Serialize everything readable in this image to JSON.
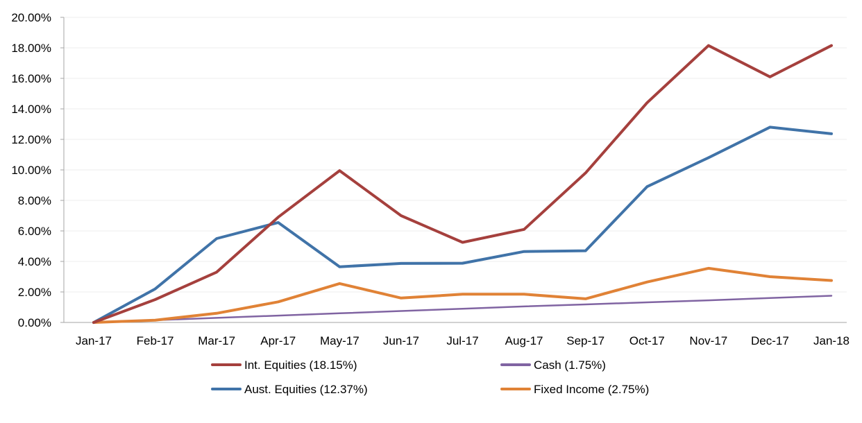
{
  "chart_data": {
    "type": "line",
    "categories": [
      "Jan-17",
      "Feb-17",
      "Mar-17",
      "Apr-17",
      "May-17",
      "Jun-17",
      "Jul-17",
      "Aug-17",
      "Sep-17",
      "Oct-17",
      "Nov-17",
      "Dec-17",
      "Jan-18"
    ],
    "ylim": [
      0,
      20
    ],
    "yticks": [
      "0.00%",
      "2.00%",
      "4.00%",
      "6.00%",
      "8.00%",
      "10.00%",
      "12.00%",
      "14.00%",
      "16.00%",
      "18.00%",
      "20.00%"
    ],
    "grid": true,
    "legend_position": "bottom",
    "series": [
      {
        "name": "Int. Equities (18.15%)",
        "color": "#a5403d",
        "values": [
          0.0,
          1.5,
          3.3,
          6.9,
          9.95,
          7.0,
          5.25,
          6.1,
          9.8,
          14.4,
          18.15,
          16.1,
          18.15
        ]
      },
      {
        "name": "Cash (1.75%)",
        "color": "#8064a2",
        "values": [
          0.0,
          0.15,
          0.3,
          0.45,
          0.6,
          0.75,
          0.9,
          1.05,
          1.18,
          1.32,
          1.45,
          1.6,
          1.75
        ]
      },
      {
        "name": "Aust. Equities (12.37%)",
        "color": "#4073a8",
        "values": [
          0.0,
          2.2,
          5.5,
          6.55,
          3.65,
          3.87,
          3.88,
          4.65,
          4.7,
          8.9,
          10.8,
          12.8,
          12.37
        ]
      },
      {
        "name": "Fixed Income (2.75%)",
        "color": "#e08236",
        "values": [
          0.0,
          0.15,
          0.6,
          1.35,
          2.55,
          1.6,
          1.85,
          1.85,
          1.55,
          2.65,
          3.55,
          3.0,
          2.75
        ]
      }
    ]
  }
}
